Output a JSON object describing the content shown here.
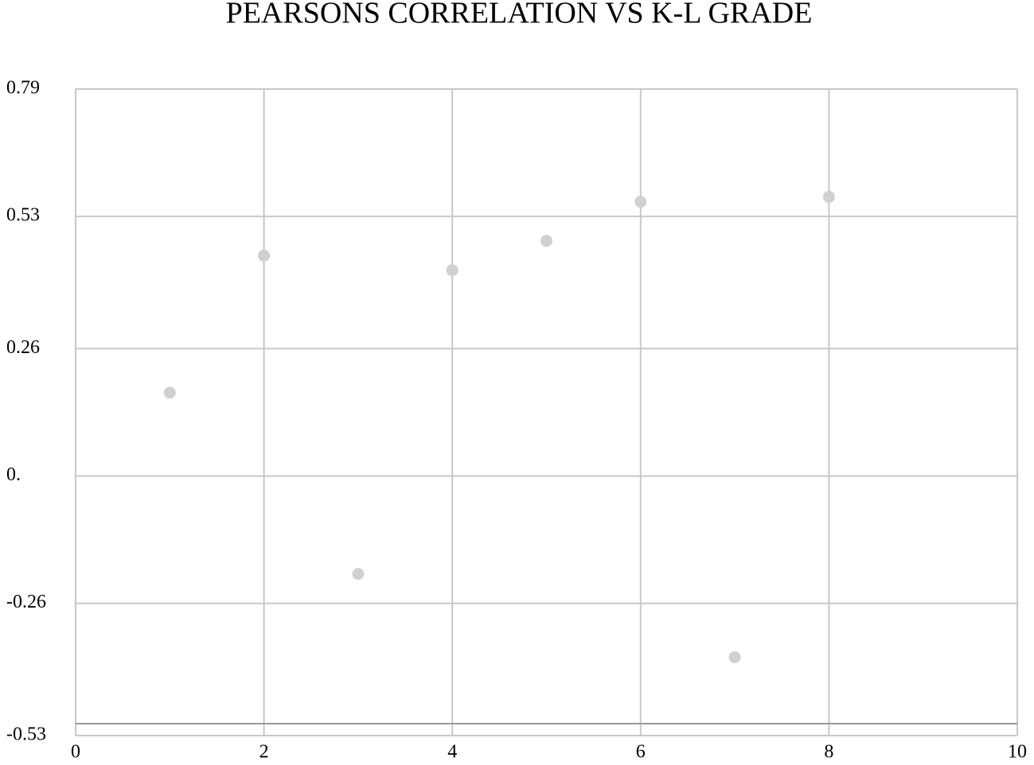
{
  "chart_data": {
    "type": "scatter",
    "title": "PEARSONS CORRELATION VS K-L GRADE",
    "x": [
      1,
      2,
      3,
      4,
      5,
      6,
      7,
      8
    ],
    "values": [
      0.17,
      0.45,
      -0.2,
      0.42,
      0.48,
      0.56,
      -0.37,
      0.57
    ],
    "color": "#d0d0d0",
    "xlim": [
      0,
      10
    ],
    "xticks": [
      0,
      2,
      4,
      6,
      8,
      10
    ],
    "ylim": [
      -0.53,
      0.79
    ],
    "yticks": [
      -0.53,
      -0.26,
      {
        "value": 0,
        "label": "0."
      },
      0.26,
      0.53,
      0.79
    ],
    "grid": true
  }
}
